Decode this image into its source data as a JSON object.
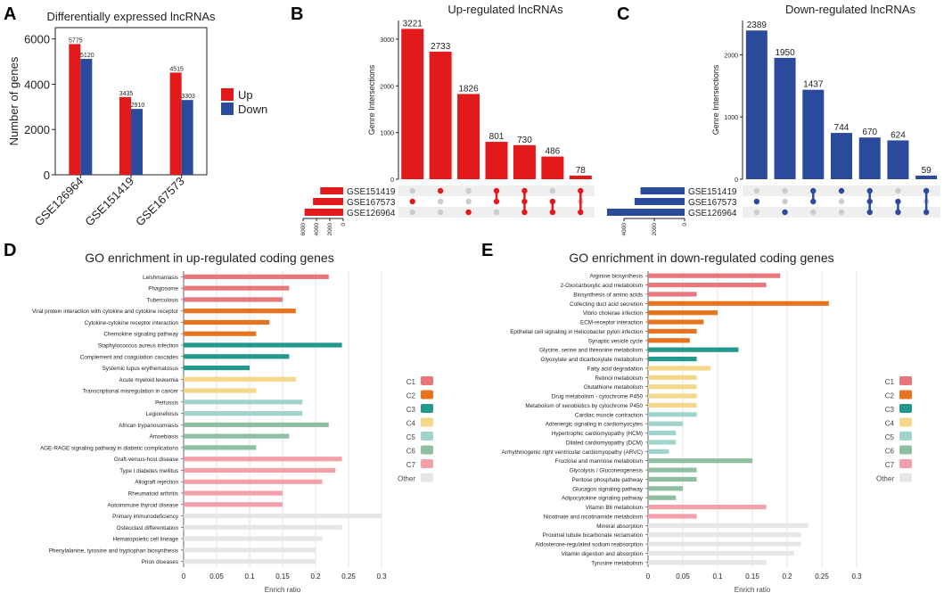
{
  "colors": {
    "up": "#e31a1c",
    "down": "#2a4a9c",
    "C1": "#e7777c",
    "C2": "#e8731f",
    "C3": "#23998e",
    "C4": "#f5d78a",
    "C5": "#9fd3cc",
    "C6": "#8fbfa1",
    "C7": "#f2a1ab",
    "Other": "#e6e6e6",
    "dot": "#cccccc"
  },
  "panel_letters": {
    "A": "A",
    "B": "B",
    "C": "C",
    "D": "D",
    "E": "E"
  },
  "chart_data": [
    {
      "id": "A",
      "type": "bar",
      "title": "Differentially expressed lncRNAs",
      "ylabel": "Number of genes",
      "xlabel": "",
      "categories": [
        "GSE126964",
        "GSE151419",
        "GSE167573"
      ],
      "series": [
        {
          "name": "Up",
          "values": [
            5775,
            3435,
            4515
          ]
        },
        {
          "name": "Down",
          "values": [
            5120,
            2910,
            3303
          ]
        }
      ],
      "ylim": [
        0,
        6500
      ],
      "yticks": [
        0,
        2000,
        4000,
        6000
      ],
      "legend_labels": [
        "Up",
        "Down"
      ],
      "legend": "right"
    },
    {
      "id": "B",
      "type": "bar",
      "title": "Up-regulated lncRNAs",
      "ylabel": "Genre Intersections",
      "values": [
        3221,
        2733,
        1826,
        801,
        730,
        486,
        78
      ],
      "ylim": [
        0,
        3400
      ],
      "yticks": [
        0,
        1000,
        2000,
        3000
      ],
      "sets": [
        "GSE151419",
        "GSE167573",
        "GSE126964"
      ],
      "set_sizes": [
        3435,
        4515,
        5775
      ],
      "set_ticks": [
        6000,
        4000,
        2000,
        0
      ],
      "membership": [
        [
          1
        ],
        [
          0
        ],
        [
          2
        ],
        [
          0,
          1
        ],
        [
          0,
          1,
          2
        ],
        [
          1,
          2
        ],
        [
          0,
          2
        ]
      ]
    },
    {
      "id": "C",
      "type": "bar",
      "title": "Down-regulated lncRNAs",
      "ylabel": "Genre Intersections",
      "values": [
        2389,
        1950,
        1437,
        744,
        670,
        624,
        59
      ],
      "ylim": [
        0,
        2550
      ],
      "yticks": [
        0,
        1000,
        2000
      ],
      "sets": [
        "GSE151419",
        "GSE167573",
        "GSE126964"
      ],
      "set_sizes": [
        2910,
        3303,
        5120
      ],
      "set_ticks": [
        4000,
        2000,
        0
      ],
      "membership": [
        [
          1
        ],
        [
          2
        ],
        [
          0,
          1
        ],
        [
          0
        ],
        [
          0,
          1,
          2
        ],
        [
          1,
          2
        ],
        [
          0,
          2
        ]
      ]
    },
    {
      "id": "D",
      "type": "bar",
      "orientation": "horizontal",
      "title": "GO enrichment in up-regulated coding genes",
      "xlabel": "Enrich ratio",
      "xlim": [
        0,
        0.3
      ],
      "xticks": [
        "0",
        "0.05",
        "0.1",
        "0.15",
        "0.2",
        "0.25",
        "0.3"
      ],
      "legend_labels": [
        "C1",
        "C2",
        "C3",
        "C4",
        "C5",
        "C6",
        "C7",
        "Other"
      ],
      "items": [
        {
          "label": "Leishmaniasis",
          "value": 0.22,
          "group": "C1"
        },
        {
          "label": "Phagosome",
          "value": 0.16,
          "group": "C1"
        },
        {
          "label": "Tuberculosis",
          "value": 0.15,
          "group": "C1"
        },
        {
          "label": "Viral protein interaction with cytokine and cytokine receptor",
          "value": 0.17,
          "group": "C2"
        },
        {
          "label": "Cytokine-cytokine receptor interaction",
          "value": 0.13,
          "group": "C2"
        },
        {
          "label": "Chemokine signaling pathway",
          "value": 0.11,
          "group": "C2"
        },
        {
          "label": "Staphylococcus aureus infection",
          "value": 0.24,
          "group": "C3"
        },
        {
          "label": "Complement and coagulation cascades",
          "value": 0.16,
          "group": "C3"
        },
        {
          "label": "Systemic lupus erythematosus",
          "value": 0.1,
          "group": "C3"
        },
        {
          "label": "Acute myeloid leukemia",
          "value": 0.17,
          "group": "C4"
        },
        {
          "label": "Transcriptional misregulation in cancer",
          "value": 0.11,
          "group": "C4"
        },
        {
          "label": "Pertussis",
          "value": 0.18,
          "group": "C5"
        },
        {
          "label": "Legionellosis",
          "value": 0.18,
          "group": "C5"
        },
        {
          "label": "African trypanosomiasis",
          "value": 0.22,
          "group": "C6"
        },
        {
          "label": "Amoebiasis",
          "value": 0.16,
          "group": "C6"
        },
        {
          "label": "AGE-RAGE signaling pathway in diabetic complications",
          "value": 0.11,
          "group": "C6"
        },
        {
          "label": "Graft-versus-host disease",
          "value": 0.24,
          "group": "C7"
        },
        {
          "label": "Type I diabetes mellitus",
          "value": 0.23,
          "group": "C7"
        },
        {
          "label": "Allograft rejection",
          "value": 0.21,
          "group": "C7"
        },
        {
          "label": "Rheumatoid arthritis",
          "value": 0.15,
          "group": "C7"
        },
        {
          "label": "Autoimmune thyroid disease",
          "value": 0.15,
          "group": "C7"
        },
        {
          "label": "Primary immunodeficiency",
          "value": 0.3,
          "group": "Other"
        },
        {
          "label": "Osteoclast differentiation",
          "value": 0.24,
          "group": "Other"
        },
        {
          "label": "Hematopoietic cell lineage",
          "value": 0.21,
          "group": "Other"
        },
        {
          "label": "Phenylalanine, tyrosine and tryptophan biosynthesis",
          "value": 0.2,
          "group": "Other"
        },
        {
          "label": "Prion diseases",
          "value": 0.2,
          "group": "Other"
        }
      ]
    },
    {
      "id": "E",
      "type": "bar",
      "orientation": "horizontal",
      "title": "GO enrichment in down-regulated coding genes",
      "xlabel": "Enrich ratio",
      "xlim": [
        0,
        0.3
      ],
      "xticks": [
        "0",
        "0.05",
        "0.1",
        "0.15",
        "0.2",
        "0.25",
        "0.3"
      ],
      "legend_labels": [
        "C1",
        "C2",
        "C3",
        "C4",
        "C5",
        "C6",
        "C7",
        "Other"
      ],
      "items": [
        {
          "label": "Arginine biosynthesis",
          "value": 0.19,
          "group": "C1"
        },
        {
          "label": "2-Oxocarboxylic acid metabolism",
          "value": 0.17,
          "group": "C1"
        },
        {
          "label": "Biosynthesis of amino acids",
          "value": 0.07,
          "group": "C1"
        },
        {
          "label": "Collecting duct acid secretion",
          "value": 0.26,
          "group": "C2"
        },
        {
          "label": "Vibrio cholerae infection",
          "value": 0.1,
          "group": "C2"
        },
        {
          "label": "ECM-receptor interaction",
          "value": 0.08,
          "group": "C2"
        },
        {
          "label": "Epithelial cell signaling in Helicobacter pylori infection",
          "value": 0.07,
          "group": "C2"
        },
        {
          "label": "Synaptic vesicle cycle",
          "value": 0.06,
          "group": "C2"
        },
        {
          "label": "Glycine, serine and threonine metabolism",
          "value": 0.13,
          "group": "C3"
        },
        {
          "label": "Glyoxylate and dicarboxylate metabolism",
          "value": 0.07,
          "group": "C3"
        },
        {
          "label": "Fatty acid degradation",
          "value": 0.09,
          "group": "C4"
        },
        {
          "label": "Retinol metabolism",
          "value": 0.07,
          "group": "C4"
        },
        {
          "label": "Glutathione metabolism",
          "value": 0.07,
          "group": "C4"
        },
        {
          "label": "Drug metabolism - cytochrome P450",
          "value": 0.07,
          "group": "C4"
        },
        {
          "label": "Metabolism of xenobiotics by cytochrome P450",
          "value": 0.07,
          "group": "C4"
        },
        {
          "label": "Cardiac muscle contraction",
          "value": 0.07,
          "group": "C5"
        },
        {
          "label": "Adrenergic signaling in cardiomyocytes",
          "value": 0.05,
          "group": "C5"
        },
        {
          "label": "Hypertrophic cardiomyopathy (HCM)",
          "value": 0.04,
          "group": "C5"
        },
        {
          "label": "Dilated cardiomyopathy (DCM)",
          "value": 0.04,
          "group": "C5"
        },
        {
          "label": "Arrhythmogenic right ventricular cardiomyopathy (ARVC)",
          "value": 0.03,
          "group": "C5"
        },
        {
          "label": "Fructose and mannose metabolism",
          "value": 0.15,
          "group": "C6"
        },
        {
          "label": "Glycolysis / Gluconeogenesis",
          "value": 0.07,
          "group": "C6"
        },
        {
          "label": "Pentose phosphate pathway",
          "value": 0.07,
          "group": "C6"
        },
        {
          "label": "Glucagon signaling pathway",
          "value": 0.05,
          "group": "C6"
        },
        {
          "label": "Adipocytokine signaling pathway",
          "value": 0.04,
          "group": "C6"
        },
        {
          "label": "Vitamin B6 metabolism",
          "value": 0.17,
          "group": "C7"
        },
        {
          "label": "Nicotinate and nicotinamide metabolism",
          "value": 0.07,
          "group": "C7"
        },
        {
          "label": "Mineral absorption",
          "value": 0.23,
          "group": "Other"
        },
        {
          "label": "Proximal tubule bicarbonate reclamation",
          "value": 0.22,
          "group": "Other"
        },
        {
          "label": "Aldosterone-regulated sodium reabsorption",
          "value": 0.22,
          "group": "Other"
        },
        {
          "label": "Vitamin digestion and absorption",
          "value": 0.21,
          "group": "Other"
        },
        {
          "label": "Tyrosine metabolism",
          "value": 0.17,
          "group": "Other"
        }
      ]
    }
  ]
}
